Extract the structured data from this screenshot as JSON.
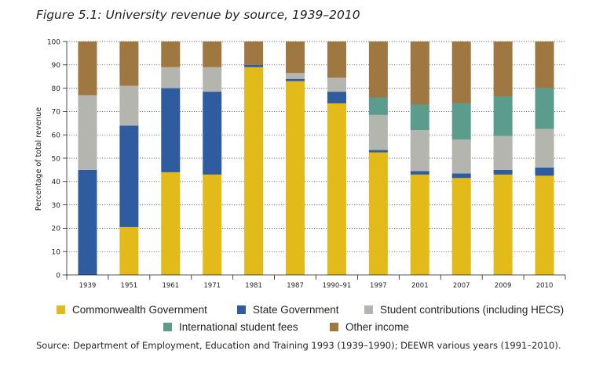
{
  "title": "Figure 5.1:  University revenue by source, 1939–2010",
  "source": "Source: Department of Employment, Education and Training 1993 (1939–1990); DEEWR various years (1991–2010).",
  "chart_data": {
    "type": "bar",
    "stacked": true,
    "ylabel": "Percentage of total revenue",
    "xlabel": "",
    "ylim": [
      0,
      100
    ],
    "yticks": [
      0,
      10,
      20,
      30,
      40,
      50,
      60,
      70,
      80,
      90,
      100
    ],
    "grid": "horizontal dotted",
    "legend_position": "bottom",
    "categories": [
      "1939",
      "1951",
      "1961",
      "1971",
      "1981",
      "1987",
      "1990–91",
      "1997",
      "2001",
      "2007",
      "2009",
      "2010"
    ],
    "series": [
      {
        "name": "Commonwealth Government",
        "color": "#e2bb1a",
        "values": [
          0,
          20.5,
          44,
          43,
          89,
          83,
          73.5,
          52.5,
          43,
          41.5,
          43,
          42.5
        ]
      },
      {
        "name": "State Government",
        "color": "#2f5c9e",
        "values": [
          45,
          43.5,
          36,
          35.5,
          1,
          1,
          5,
          1,
          1.5,
          2,
          2,
          3.5
        ]
      },
      {
        "name": "Student contributions (including HECS)",
        "color": "#b3b5ae",
        "values": [
          32,
          17,
          9,
          10.5,
          0,
          2.5,
          6,
          15,
          17.5,
          14.5,
          14.5,
          16.5
        ]
      },
      {
        "name": "International student fees",
        "color": "#5c9c8c",
        "values": [
          0,
          0,
          0,
          0,
          0,
          0,
          0,
          7.5,
          11,
          15.5,
          17,
          17.5
        ]
      },
      {
        "name": "Other income",
        "color": "#9f7741",
        "values": [
          23,
          19,
          11,
          11,
          10,
          13.5,
          15.5,
          24,
          27,
          26.5,
          23.5,
          20
        ]
      }
    ]
  }
}
